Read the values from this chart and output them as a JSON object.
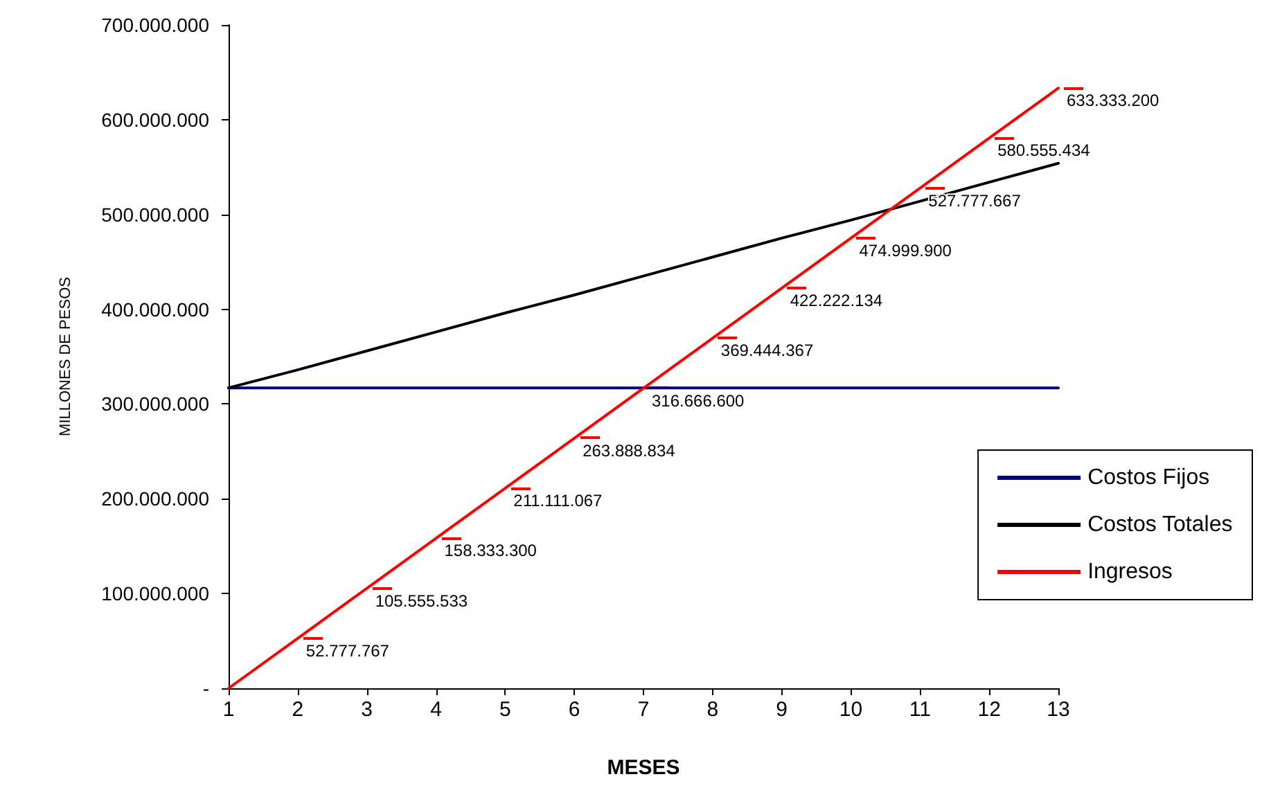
{
  "chart_data": {
    "type": "line",
    "xlabel": "MESES",
    "ylabel": "MILLONES DE PESOS",
    "x": [
      1,
      2,
      3,
      4,
      5,
      6,
      7,
      8,
      9,
      10,
      11,
      12,
      13
    ],
    "xlim": [
      1,
      13
    ],
    "xticks": [
      1,
      2,
      3,
      4,
      5,
      6,
      7,
      8,
      9,
      10,
      11,
      12,
      13
    ],
    "ylim": [
      0,
      700000000
    ],
    "yticks": [
      {
        "value": 0,
        "label": "-"
      },
      {
        "value": 100000000,
        "label": "100.000.000"
      },
      {
        "value": 200000000,
        "label": "200.000.000"
      },
      {
        "value": 300000000,
        "label": "300.000.000"
      },
      {
        "value": 400000000,
        "label": "400.000.000"
      },
      {
        "value": 500000000,
        "label": "500.000.000"
      },
      {
        "value": 600000000,
        "label": "600.000.000"
      },
      {
        "value": 700000000,
        "label": "700.000.000"
      }
    ],
    "grid": false,
    "legend": "bottom right",
    "marker": "none",
    "line_style": "solid",
    "series": [
      {
        "name": "Costos Fijos",
        "color": "#000080",
        "values": [
          317000000,
          317000000,
          317000000,
          317000000,
          317000000,
          317000000,
          317000000,
          317000000,
          317000000,
          317000000,
          317000000,
          317000000,
          317000000
        ]
      },
      {
        "name": "Costos Totales",
        "color": "#000000",
        "values": [
          317000000,
          336000000,
          356000000,
          376000000,
          396000000,
          415000000,
          435000000,
          455000000,
          475000000,
          494000000,
          514000000,
          534000000,
          554000000
        ]
      },
      {
        "name": "Ingresos",
        "color": "#ff0000",
        "values": [
          0,
          52777767,
          105555533,
          158333300,
          211111067,
          263888834,
          316666600,
          369444367,
          422222134,
          474999900,
          527777667,
          580555434,
          633333200
        ],
        "value_labels": [
          null,
          "52.777.767",
          "105.555.533",
          "158.333.300",
          "211.111.067",
          "263.888.834",
          "316.666.600",
          "369.444.367",
          "422.222.134",
          "474.999.900",
          "527.777.667",
          "580.555.434",
          "633.333.200"
        ]
      }
    ]
  }
}
